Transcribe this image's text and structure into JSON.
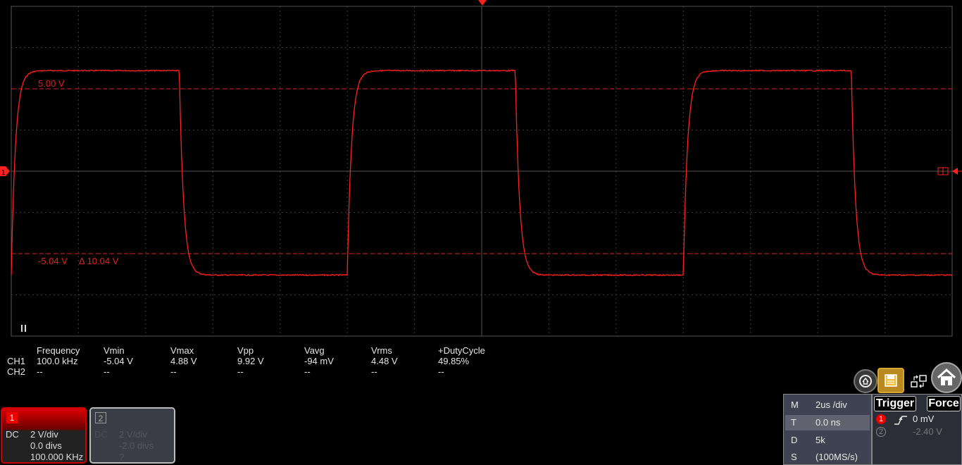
{
  "waveform": {
    "channel_marker": "1",
    "trigger_marker": "T",
    "cursor_upper_label": "5.00 V",
    "cursor_lower_label": "-5.04 V",
    "cursor_delta_label": "Δ 10.04 V",
    "run_state_icon": "pause-icon",
    "trace_color": "#ff2020",
    "cursor_color": "#e02020",
    "grid_color": "#3a3a3a",
    "signal": {
      "type": "square",
      "high_v": 4.88,
      "low_v": -5.04,
      "volts_per_div": 2,
      "time_per_div_us": 2,
      "frequency_khz": 100.0
    }
  },
  "measurements": {
    "headers": [
      "Frequency",
      "Vmin",
      "Vmax",
      "Vpp",
      "Vavg",
      "Vrms",
      "+DutyCycle"
    ],
    "rows": [
      {
        "label": "CH1",
        "values": [
          "100.0 kHz",
          "-5.04 V",
          "4.88 V",
          "9.92 V",
          "-94 mV",
          "4.48 V",
          "49.85%"
        ]
      },
      {
        "label": "CH2",
        "values": [
          "--",
          "--",
          "--",
          "--",
          "--",
          "--",
          "--"
        ]
      }
    ]
  },
  "toolbar": {
    "icons": [
      "home-refresh-icon",
      "save-icon",
      "window-layout-icon",
      "home-icon"
    ]
  },
  "channels": [
    {
      "number": "1",
      "coupling": "DC",
      "scale": "2 V/div",
      "offset": "0.0 divs",
      "freq": "100.000 KHz",
      "color": "#e00000"
    },
    {
      "number": "2",
      "coupling": "DC",
      "scale": "2 V/div",
      "offset": "-2.0 divs",
      "freq": "?",
      "color": "#888888"
    }
  ],
  "horizontal": {
    "rows": [
      {
        "key": "M",
        "value": "2us /div"
      },
      {
        "key": "T",
        "value": "0.0 ns"
      },
      {
        "key": "D",
        "value": "5k"
      },
      {
        "key": "S",
        "value": "(100MS/s)"
      }
    ]
  },
  "trigger": {
    "trigger_label": "Trigger",
    "force_label": "Force",
    "ch1_num": "1",
    "ch1_level": "0 mV",
    "ch2_num": "2",
    "ch2_level": "-2.40 V"
  }
}
